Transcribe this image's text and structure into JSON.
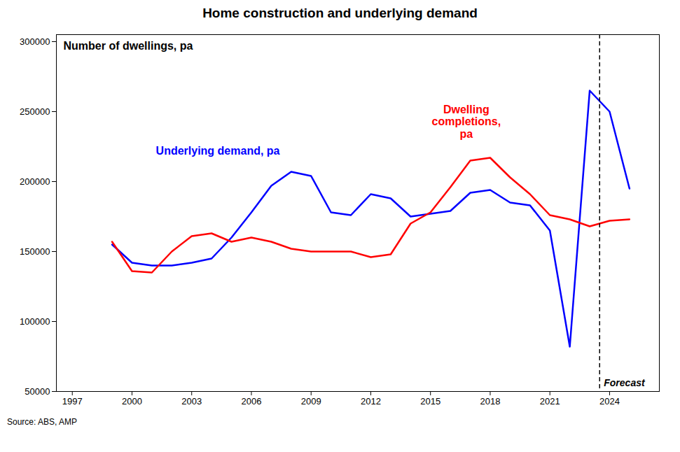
{
  "chart_data": {
    "type": "line",
    "title": "Home construction and underlying demand",
    "subtitle": "Number of dwellings, pa",
    "source": "Source: ABS, AMP",
    "x": [
      1999,
      2000,
      2001,
      2002,
      2003,
      2004,
      2005,
      2006,
      2007,
      2008,
      2009,
      2010,
      2011,
      2012,
      2013,
      2014,
      2015,
      2016,
      2017,
      2018,
      2019,
      2020,
      2021,
      2022,
      2023,
      2024,
      2025
    ],
    "series": [
      {
        "name": "Underlying demand, pa",
        "color": "#0000FF",
        "label_x": 2001.2,
        "label_y": 222000,
        "values": [
          155000,
          142000,
          140000,
          140000,
          142000,
          145000,
          160000,
          178000,
          197000,
          207000,
          204000,
          178000,
          176000,
          191000,
          188000,
          175000,
          177000,
          179000,
          192000,
          194000,
          185000,
          183000,
          165000,
          82000,
          265000,
          250000,
          195000
        ]
      },
      {
        "name": "Dwelling\ncompletions,\npa",
        "color": "#FF0000",
        "label_x": 2016.8,
        "label_y": 243000,
        "values": [
          157000,
          136000,
          135000,
          150000,
          161000,
          163000,
          157000,
          160000,
          157000,
          152000,
          150000,
          150000,
          150000,
          146000,
          148000,
          170000,
          178000,
          196000,
          215000,
          217000,
          203000,
          191000,
          176000,
          173000,
          168000,
          172000,
          173000
        ]
      }
    ],
    "vlines": [
      {
        "x": 2023.5,
        "label": "Forecast",
        "line_style": "dashed"
      }
    ],
    "xlim": [
      1996.2,
      2026.5
    ],
    "xticks": [
      1997,
      2000,
      2003,
      2006,
      2009,
      2012,
      2015,
      2018,
      2021,
      2024
    ],
    "ylim": [
      50000,
      305000
    ],
    "yticks": [
      50000,
      100000,
      150000,
      200000,
      250000,
      300000
    ],
    "grid": false
  }
}
